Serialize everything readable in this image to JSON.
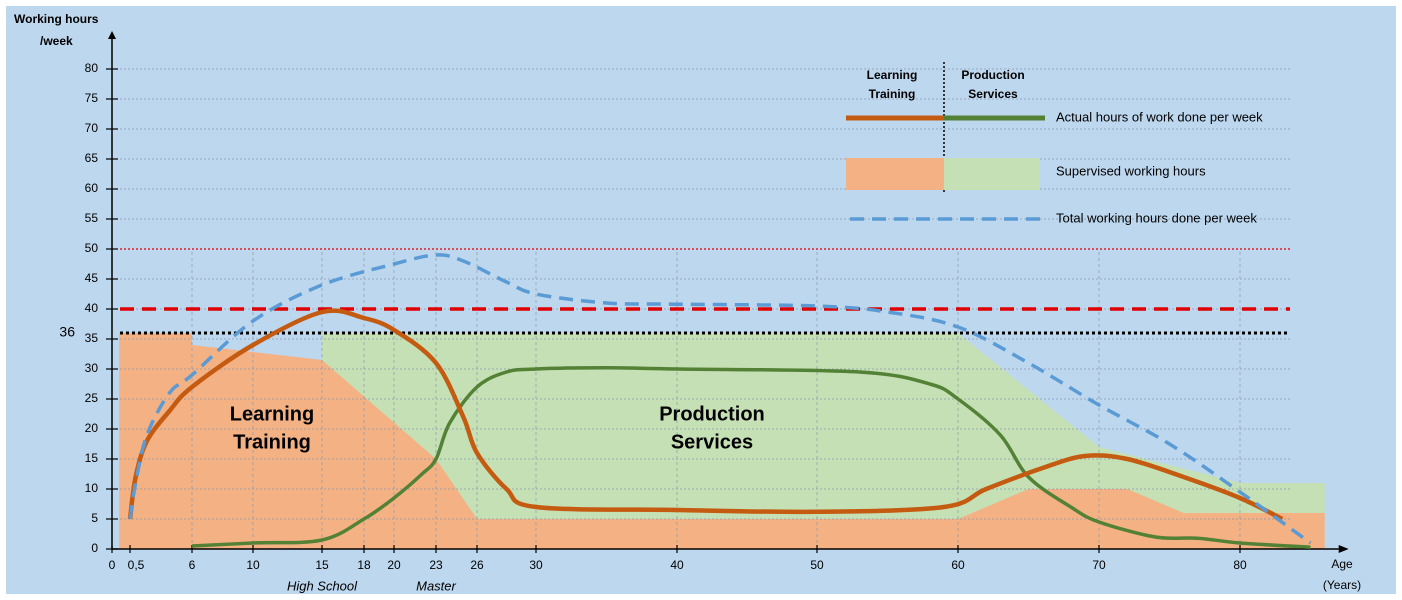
{
  "chart_data": {
    "type": "line",
    "y_axis_label": [
      "Working hours",
      "/week"
    ],
    "x_axis_label": [
      "Age",
      "(Years)"
    ],
    "xlim": [
      0,
      87
    ],
    "ylim": [
      0,
      85
    ],
    "xticks": [
      0,
      {
        "value": 0.5,
        "label": "0,5"
      },
      6,
      10,
      15,
      18,
      20,
      23,
      26,
      30,
      40,
      50,
      60,
      70,
      80
    ],
    "yticks": [
      0,
      5,
      10,
      15,
      20,
      25,
      30,
      35,
      40,
      45,
      50,
      55,
      60,
      65,
      70,
      75,
      80
    ],
    "grid": true,
    "x_annotations": [
      {
        "x": 15,
        "text": "High School"
      },
      {
        "x": 23,
        "text": "Master"
      }
    ],
    "reference_lines": [
      {
        "value": 50,
        "color": "#e00000",
        "style": "dotted"
      },
      {
        "value": 40,
        "color": "#e00000",
        "style": "dashed"
      },
      {
        "value": 36,
        "color": "#000000",
        "style": "dotted",
        "label": "36"
      }
    ],
    "region_labels": [
      {
        "lines": [
          "Learning",
          "Training"
        ],
        "color": "#c55a11"
      },
      {
        "lines": [
          "Production",
          "Services"
        ],
        "color": "#548235"
      }
    ],
    "supervised": [
      {
        "color": "#f4b183",
        "x": [
          0.2,
          6,
          6,
          15,
          23,
          26,
          60,
          65,
          72,
          76,
          86
        ],
        "values": [
          36,
          36,
          34,
          31.5,
          15,
          5,
          5,
          10,
          10,
          6,
          6
        ]
      },
      {
        "color": "#c5e0b4",
        "x": [
          15,
          60,
          70,
          80,
          86
        ],
        "values": [
          36,
          36,
          17,
          11,
          11
        ]
      }
    ],
    "actual": [
      {
        "color": "#c55a11",
        "x": [
          0.5,
          1,
          2,
          4,
          6,
          10,
          15,
          18,
          20,
          23,
          25,
          26,
          28,
          30,
          40,
          50,
          59,
          62,
          66,
          69,
          72,
          76,
          80,
          83
        ],
        "values": [
          5,
          12,
          18,
          23,
          27,
          34,
          39.5,
          38.5,
          36.5,
          31,
          22,
          16,
          10,
          7,
          6.5,
          6.2,
          7,
          10,
          13.5,
          15.5,
          15,
          12,
          8.5,
          5
        ]
      },
      {
        "color": "#538135",
        "x": [
          6,
          10,
          15,
          18,
          20,
          22,
          23,
          24,
          26,
          28,
          30,
          35,
          40,
          53,
          58,
          60,
          63,
          65,
          68,
          70,
          74,
          77,
          80,
          85
        ],
        "values": [
          0.5,
          1,
          1.5,
          5,
          8.5,
          12.5,
          15,
          21,
          27,
          29.5,
          30,
          30.2,
          30,
          29.5,
          27.5,
          25,
          19,
          12,
          7,
          4.5,
          2,
          1.8,
          1,
          0.3
        ]
      }
    ],
    "total": {
      "color": "#5b9bd5",
      "x": [
        0.5,
        1,
        2,
        4,
        6,
        10,
        15,
        20,
        23,
        25,
        28,
        30,
        35,
        40,
        50,
        55,
        60,
        65,
        70,
        75,
        80,
        85
      ],
      "values": [
        5,
        11,
        19,
        26,
        29,
        38,
        44,
        47.5,
        49,
        48,
        44.5,
        42.5,
        41,
        40.8,
        40.5,
        39.5,
        37,
        31,
        24,
        17.5,
        9.5,
        1
      ]
    },
    "legend": {
      "headers": [
        [
          "Learning",
          "Training"
        ],
        [
          "Production",
          "Services"
        ]
      ],
      "entries": [
        "Actual hours of work done per week",
        "Supervised working hours",
        "Total working hours done per week"
      ]
    }
  }
}
